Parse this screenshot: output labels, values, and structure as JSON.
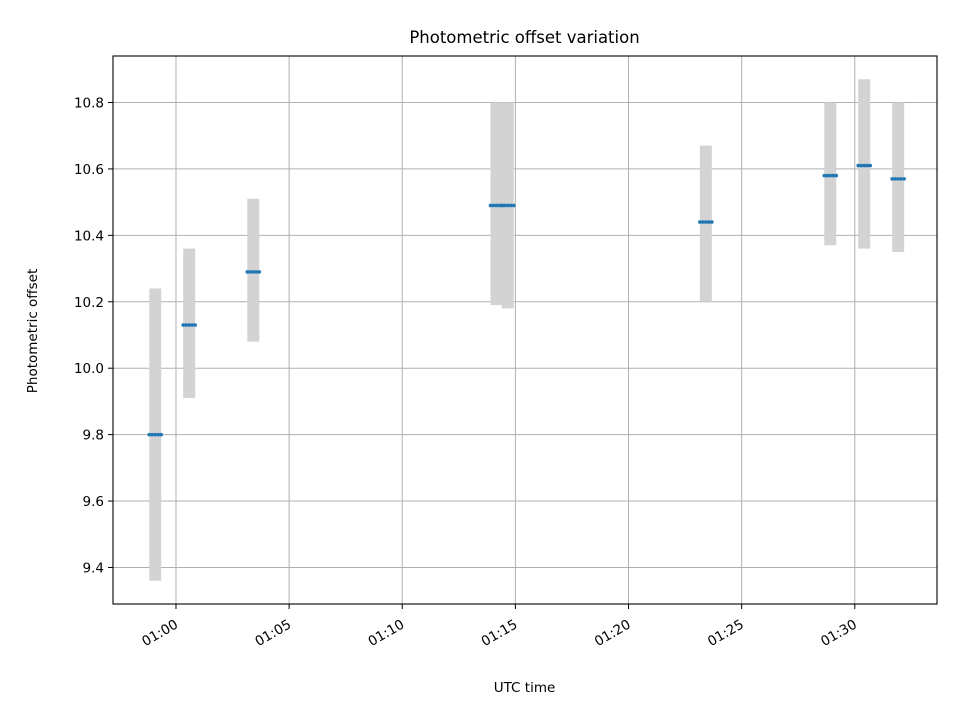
{
  "chart_data": {
    "type": "scatter",
    "title": "Photometric offset variation",
    "xlabel": "UTC time",
    "ylabel": "Photometric offset",
    "x_tick_labels": [
      "01:00",
      "01:05",
      "01:10",
      "01:15",
      "01:20",
      "01:25",
      "01:30"
    ],
    "y_tick_labels": [
      "9.4",
      "9.6",
      "9.8",
      "10.0",
      "10.2",
      "10.4",
      "10.6",
      "10.8"
    ],
    "xlim": [
      "00:57:13",
      "01:33:38"
    ],
    "ylim": [
      9.29,
      10.94
    ],
    "grid": true,
    "series": [
      {
        "points": [
          {
            "x": "00:59:05",
            "y": 9.8,
            "ymin": 9.36,
            "ymax": 10.24
          },
          {
            "x": "01:00:35",
            "y": 10.13,
            "ymin": 9.91,
            "ymax": 10.36
          },
          {
            "x": "01:03:25",
            "y": 10.29,
            "ymin": 10.08,
            "ymax": 10.51
          },
          {
            "x": "01:14:10",
            "y": 10.49,
            "ymin": 10.19,
            "ymax": 10.8
          },
          {
            "x": "01:14:40",
            "y": 10.49,
            "ymin": 10.18,
            "ymax": 10.8
          },
          {
            "x": "01:23:25",
            "y": 10.44,
            "ymin": 10.2,
            "ymax": 10.67
          },
          {
            "x": "01:28:55",
            "y": 10.58,
            "ymin": 10.37,
            "ymax": 10.8
          },
          {
            "x": "01:30:25",
            "y": 10.61,
            "ymin": 10.36,
            "ymax": 10.87
          },
          {
            "x": "01:31:55",
            "y": 10.57,
            "ymin": 10.35,
            "ymax": 10.8
          }
        ]
      }
    ],
    "colors": {
      "marker": "#1f77b4",
      "errorbar": "#d3d3d3",
      "grid": "#b0b0b0",
      "axes": "#000000"
    }
  }
}
